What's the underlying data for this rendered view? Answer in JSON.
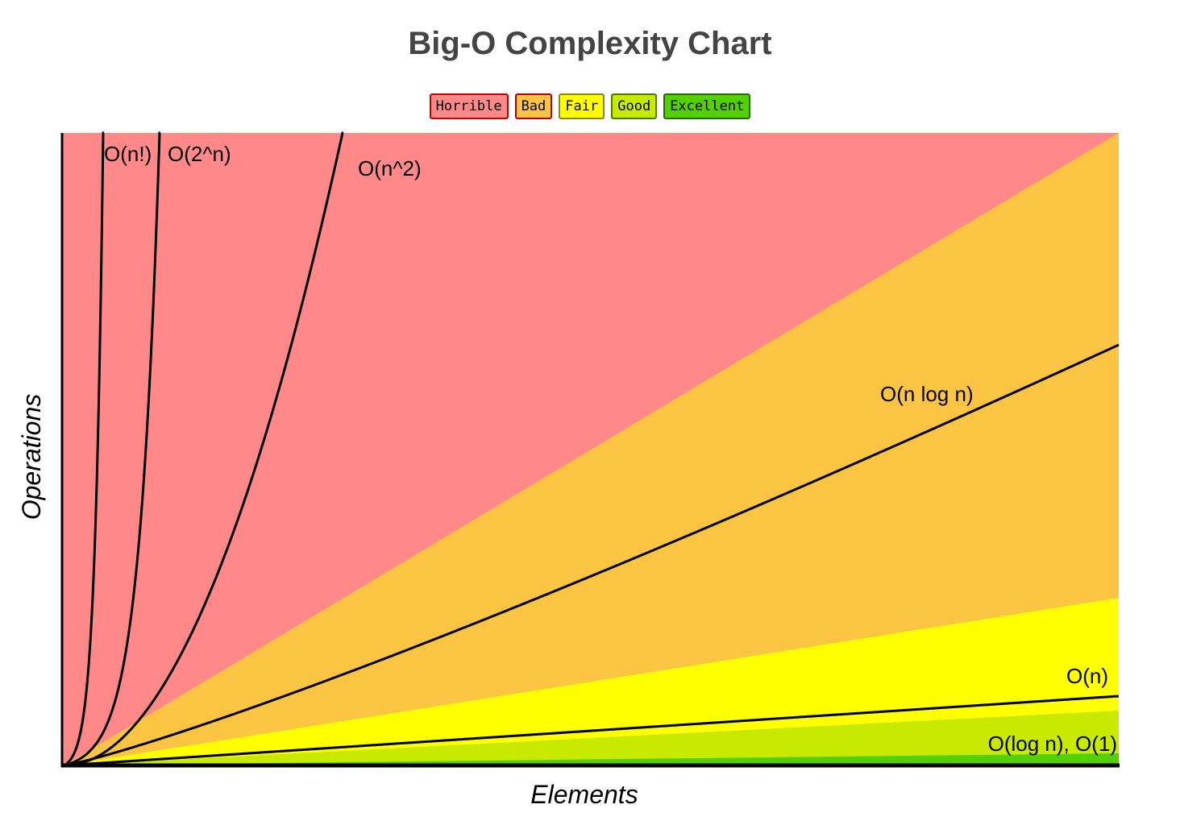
{
  "chart_data": {
    "type": "line",
    "title": "Big-O Complexity Chart",
    "xlabel": "Elements",
    "ylabel": "Operations",
    "grid": false,
    "legend_placement": "top",
    "legend": [
      {
        "label": "Horrible",
        "color": "#ff8989",
        "border": "#c00000"
      },
      {
        "label": "Bad",
        "color": "#fcc443",
        "border": "#b00000"
      },
      {
        "label": "Fair",
        "color": "#ffff00",
        "border": "#8a8a00"
      },
      {
        "label": "Good",
        "color": "#c8ea00",
        "border": "#4a7a00"
      },
      {
        "label": "Excellent",
        "color": "#53d000",
        "border": "#2a6a00"
      }
    ],
    "series": [
      {
        "name": "O(n!)"
      },
      {
        "name": "O(2^n)"
      },
      {
        "name": "O(n^2)"
      },
      {
        "name": "O(n log n)"
      },
      {
        "name": "O(n)"
      },
      {
        "name": "O(log n), O(1)"
      }
    ]
  }
}
